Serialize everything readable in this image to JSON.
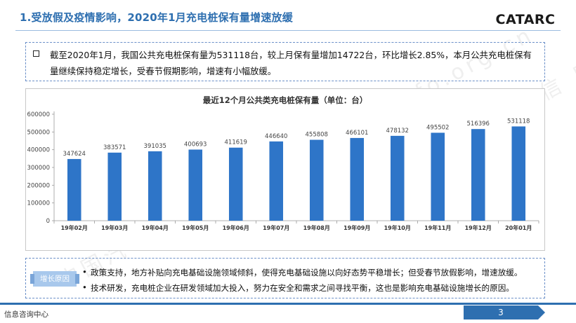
{
  "header": {
    "title": "1.受放假及疫情影响，2020年1月充电桩保有量增速放缓",
    "logo_text": "CATARC"
  },
  "summary": {
    "text": "截至2020年1月，我国公共充电桩保有量为531118台，较上月保有量增加14722台，环比增长2.85%，本月公共充电桩保有量继续保持稳定增长，受春节假期影响，增速有小幅放缓。"
  },
  "chart_data": {
    "type": "bar",
    "title": "最近12个月公共类充电桩保有量（单位：台）",
    "categories": [
      "19年02月",
      "19年03月",
      "19年04月",
      "19年05月",
      "19年06月",
      "19年07月",
      "19年08月",
      "19年09月",
      "19年10月",
      "19年11月",
      "19年12月",
      "20年01月"
    ],
    "values": [
      347624,
      383571,
      391035,
      400693,
      411619,
      446640,
      455808,
      466101,
      478132,
      495502,
      516396,
      531118
    ],
    "ylim": [
      0,
      600000
    ],
    "yticks": [
      "0",
      "100000",
      "200000",
      "300000",
      "400000",
      "500000",
      "600000"
    ],
    "bar_color": "#2e75c8",
    "grid": false,
    "legend": "none"
  },
  "notes": {
    "tag": "增长原因",
    "items": [
      "政策支持，地方补贴向充电基础设施领域倾斜，使得充电基础设施以向好态势平稳增长；但受春节放假影响，增速放缓。",
      "技术研发，充电桩企业在研发领域加大投入，努力在安全和需求之间寻找平衡，这也是影响充电基础设施增长的原因。"
    ]
  },
  "footer": {
    "left_text": "信息咨询中心",
    "page_number": "3"
  },
  "watermark": "中国汽车工业信息网 www.autoinfo.org.cn",
  "colors": {
    "accent": "#2e6fb0",
    "bars": "#2e75c8"
  }
}
